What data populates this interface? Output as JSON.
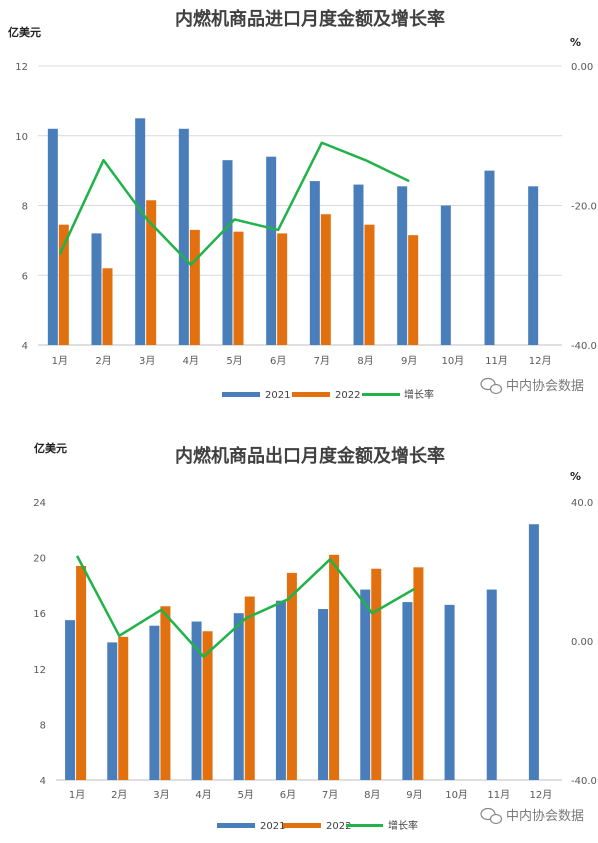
{
  "colors": {
    "s2021": "#4a7ebb",
    "s2022": "#e2700f",
    "growth": "#1fb34a"
  },
  "watermark": "中内协会数据",
  "chart_data": [
    {
      "type": "bar",
      "title": "内燃机商品进口月度金额及增长率",
      "ylabel": "亿美元",
      "y2label": "%",
      "categories": [
        "1月",
        "2月",
        "3月",
        "4月",
        "5月",
        "6月",
        "7月",
        "8月",
        "9月",
        "10月",
        "11月",
        "12月"
      ],
      "ylim": [
        4,
        12
      ],
      "yticks": [
        4,
        6,
        8,
        10,
        12
      ],
      "y2lim": [
        -40,
        0
      ],
      "y2ticks": [
        "-40.0",
        "-20.0",
        "0.00"
      ],
      "grid": true,
      "legend_position": "bottom",
      "series": [
        {
          "name": "2021",
          "type": "bar",
          "values": [
            10.2,
            7.2,
            10.5,
            10.2,
            9.3,
            9.4,
            8.7,
            8.6,
            8.55,
            8.0,
            9.0,
            8.55
          ]
        },
        {
          "name": "2022",
          "type": "bar",
          "values": [
            7.45,
            6.2,
            8.15,
            7.3,
            7.25,
            7.2,
            7.75,
            7.45,
            7.15,
            null,
            null,
            null
          ]
        },
        {
          "name": "增长率",
          "type": "line",
          "axis": "right",
          "values": [
            -27.0,
            -13.5,
            -22.0,
            -28.5,
            -22.0,
            -23.5,
            -11.0,
            -13.5,
            -16.5,
            null,
            null,
            null
          ]
        }
      ]
    },
    {
      "type": "bar",
      "title": "内燃机商品出口月度金额及增长率",
      "ylabel": "亿美元",
      "y2label": "%",
      "categories": [
        "1月",
        "2月",
        "3月",
        "4月",
        "5月",
        "6月",
        "7月",
        "8月",
        "9月",
        "10月",
        "11月",
        "12月"
      ],
      "ylim": [
        4,
        24
      ],
      "yticks": [
        4,
        8,
        12,
        16,
        20,
        24
      ],
      "y2lim": [
        -40,
        40
      ],
      "y2ticks": [
        "-40.0",
        "0.00",
        "40.0"
      ],
      "grid": false,
      "legend_position": "bottom",
      "series": [
        {
          "name": "2021",
          "type": "bar",
          "values": [
            15.5,
            13.9,
            15.1,
            15.4,
            16.0,
            16.9,
            16.3,
            17.7,
            16.8,
            16.6,
            17.7,
            22.4
          ]
        },
        {
          "name": "2022",
          "type": "bar",
          "values": [
            19.4,
            14.3,
            16.5,
            14.7,
            17.2,
            18.9,
            20.2,
            19.2,
            19.3,
            null,
            null,
            null
          ]
        },
        {
          "name": "增长率",
          "type": "line",
          "axis": "right",
          "values": [
            24.5,
            1.5,
            9.0,
            -4.5,
            6.5,
            12.0,
            23.5,
            8.0,
            15.0,
            null,
            null,
            null
          ]
        }
      ]
    }
  ]
}
